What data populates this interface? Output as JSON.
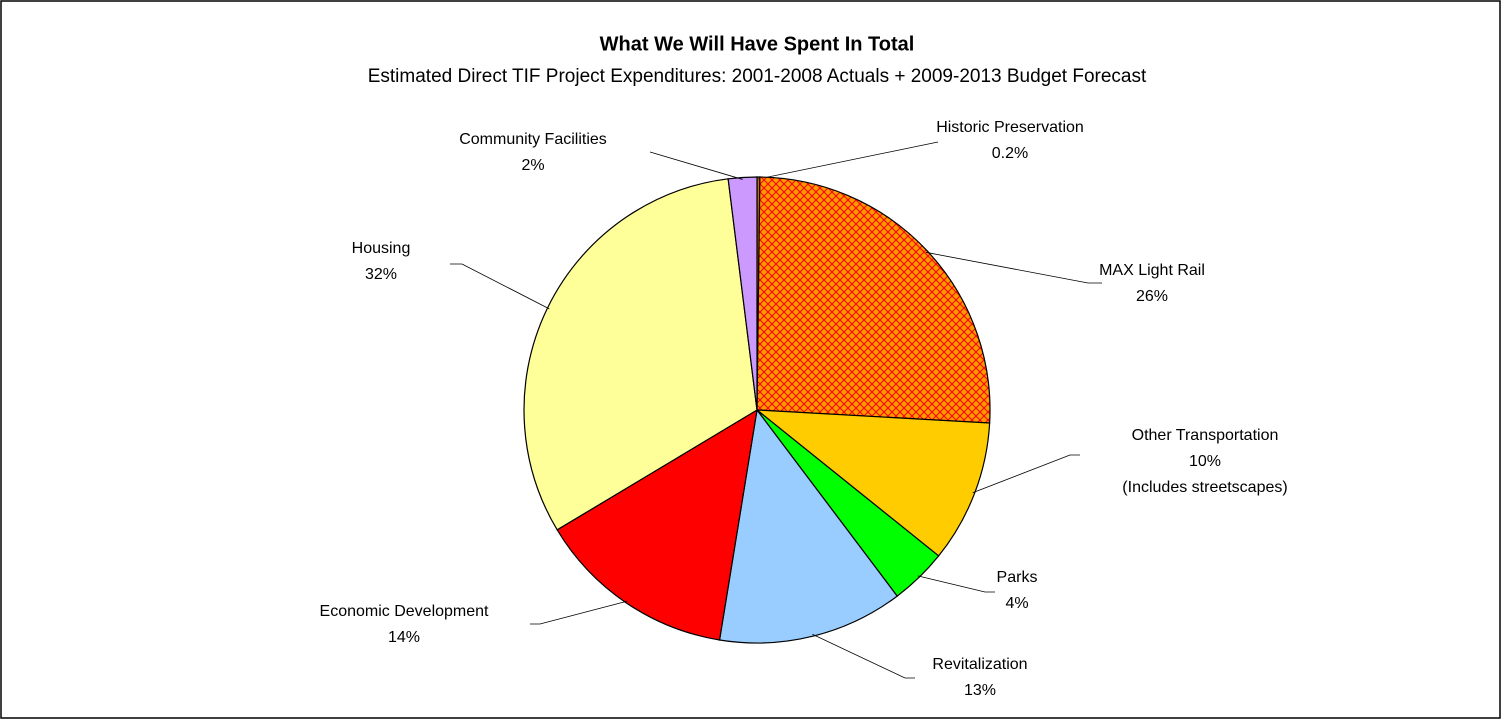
{
  "chart_data": {
    "type": "pie",
    "title": "What We Will Have Spent In Total",
    "subtitle": "Estimated Direct TIF Project Expenditures: 2001-2008 Actuals + 2009-2013 Budget Forecast",
    "categories": [
      "Historic Preservation",
      "MAX Light Rail",
      "Other Transportation",
      "Parks",
      "Revitalization",
      "Economic Development",
      "Housing",
      "Community Facilities"
    ],
    "values": [
      0.2,
      26,
      10,
      4,
      13,
      14,
      32,
      2
    ],
    "value_labels": [
      "0.2%",
      "26%",
      "10%",
      "4%",
      "13%",
      "14%",
      "32%",
      "2%"
    ],
    "annotations": [
      "(Includes streetscapes)"
    ],
    "colors": [
      "#cc6600",
      "#ff9900",
      "#ffcc00",
      "#00ff00",
      "#99ccff",
      "#ff0000",
      "#ffff99",
      "#cc99ff"
    ],
    "patterns": [
      null,
      "crosshatch",
      null,
      null,
      null,
      null,
      null,
      null
    ]
  }
}
